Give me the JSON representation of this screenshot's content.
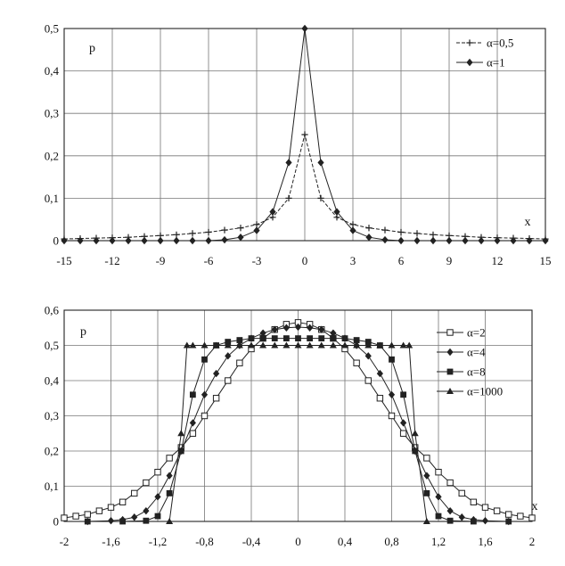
{
  "chart_data": [
    {
      "type": "line",
      "ylabel": "p",
      "xlabel": "x",
      "xlim": [
        -15,
        15
      ],
      "ylim": [
        0,
        0.5
      ],
      "x_ticks": [
        "-15",
        "-12",
        "-9",
        "-6",
        "-3",
        "0",
        "3",
        "6",
        "9",
        "12",
        "15"
      ],
      "y_ticks": [
        "0",
        "0,1",
        "0,2",
        "0,3",
        "0,4",
        "0,5"
      ],
      "grid": true,
      "legend_position": "top-right",
      "series": [
        {
          "name": "α=0,5",
          "marker": "plus",
          "color": "#222222",
          "points": [
            [
              -15,
              0.004
            ],
            [
              -14,
              0.005
            ],
            [
              -13,
              0.006
            ],
            [
              -12,
              0.007
            ],
            [
              -11,
              0.008
            ],
            [
              -10,
              0.01
            ],
            [
              -9,
              0.012
            ],
            [
              -8,
              0.014
            ],
            [
              -7,
              0.017
            ],
            [
              -6,
              0.02
            ],
            [
              -5,
              0.025
            ],
            [
              -4,
              0.03
            ],
            [
              -3,
              0.038
            ],
            [
              -2,
              0.055
            ],
            [
              -1,
              0.1
            ],
            [
              0,
              0.25
            ],
            [
              1,
              0.1
            ],
            [
              2,
              0.055
            ],
            [
              3,
              0.038
            ],
            [
              4,
              0.03
            ],
            [
              5,
              0.025
            ],
            [
              6,
              0.02
            ],
            [
              7,
              0.017
            ],
            [
              8,
              0.014
            ],
            [
              9,
              0.012
            ],
            [
              10,
              0.01
            ],
            [
              11,
              0.008
            ],
            [
              12,
              0.007
            ],
            [
              13,
              0.006
            ],
            [
              14,
              0.005
            ],
            [
              15,
              0.004
            ]
          ]
        },
        {
          "name": "α=1",
          "marker": "diamond",
          "color": "#222222",
          "points": [
            [
              -15,
              0.0
            ],
            [
              -14,
              0.0
            ],
            [
              -13,
              0.0
            ],
            [
              -12,
              0.0
            ],
            [
              -11,
              0.0
            ],
            [
              -10,
              0.0
            ],
            [
              -9,
              0.0
            ],
            [
              -8,
              0.0
            ],
            [
              -7,
              0.0
            ],
            [
              -6,
              0.0
            ],
            [
              -5,
              0.002
            ],
            [
              -4,
              0.008
            ],
            [
              -3,
              0.024
            ],
            [
              -2,
              0.068
            ],
            [
              -1,
              0.184
            ],
            [
              0,
              0.5
            ],
            [
              1,
              0.184
            ],
            [
              2,
              0.068
            ],
            [
              3,
              0.024
            ],
            [
              4,
              0.008
            ],
            [
              5,
              0.002
            ],
            [
              6,
              0.0
            ],
            [
              7,
              0.0
            ],
            [
              8,
              0.0
            ],
            [
              9,
              0.0
            ],
            [
              10,
              0.0
            ],
            [
              11,
              0.0
            ],
            [
              12,
              0.0
            ],
            [
              13,
              0.0
            ],
            [
              14,
              0.0
            ],
            [
              15,
              0.0
            ]
          ]
        }
      ]
    },
    {
      "type": "line",
      "ylabel": "p",
      "xlabel": "x",
      "xlim": [
        -2,
        2
      ],
      "ylim": [
        0,
        0.6
      ],
      "x_ticks": [
        "-2",
        "-1,6",
        "-1,2",
        "-0,8",
        "-0,4",
        "0",
        "0,4",
        "0,8",
        "1,2",
        "1,6",
        "2"
      ],
      "y_ticks": [
        "0",
        "0,1",
        "0,2",
        "0,3",
        "0,4",
        "0,5",
        "0,6"
      ],
      "grid": true,
      "legend_position": "top-right",
      "series": [
        {
          "name": "α=2",
          "marker": "open-square",
          "color": "#222222",
          "points": [
            [
              -2,
              0.01
            ],
            [
              -1.9,
              0.015
            ],
            [
              -1.8,
              0.02
            ],
            [
              -1.7,
              0.03
            ],
            [
              -1.6,
              0.04
            ],
            [
              -1.5,
              0.055
            ],
            [
              -1.4,
              0.08
            ],
            [
              -1.3,
              0.11
            ],
            [
              -1.2,
              0.14
            ],
            [
              -1.1,
              0.18
            ],
            [
              -1.0,
              0.21
            ],
            [
              -0.9,
              0.25
            ],
            [
              -0.8,
              0.3
            ],
            [
              -0.7,
              0.35
            ],
            [
              -0.6,
              0.4
            ],
            [
              -0.5,
              0.45
            ],
            [
              -0.4,
              0.49
            ],
            [
              -0.3,
              0.52
            ],
            [
              -0.2,
              0.545
            ],
            [
              -0.1,
              0.56
            ],
            [
              0,
              0.565
            ],
            [
              0.1,
              0.56
            ],
            [
              0.2,
              0.545
            ],
            [
              0.3,
              0.52
            ],
            [
              0.4,
              0.49
            ],
            [
              0.5,
              0.45
            ],
            [
              0.6,
              0.4
            ],
            [
              0.7,
              0.35
            ],
            [
              0.8,
              0.3
            ],
            [
              0.9,
              0.25
            ],
            [
              1.0,
              0.21
            ],
            [
              1.1,
              0.18
            ],
            [
              1.2,
              0.14
            ],
            [
              1.3,
              0.11
            ],
            [
              1.4,
              0.08
            ],
            [
              1.5,
              0.055
            ],
            [
              1.6,
              0.04
            ],
            [
              1.7,
              0.03
            ],
            [
              1.8,
              0.02
            ],
            [
              1.9,
              0.015
            ],
            [
              2,
              0.01
            ]
          ]
        },
        {
          "name": "α=4",
          "marker": "diamond",
          "color": "#222222",
          "points": [
            [
              -1.8,
              0.0
            ],
            [
              -1.6,
              0.002
            ],
            [
              -1.5,
              0.005
            ],
            [
              -1.4,
              0.012
            ],
            [
              -1.3,
              0.03
            ],
            [
              -1.2,
              0.07
            ],
            [
              -1.1,
              0.13
            ],
            [
              -1.0,
              0.2
            ],
            [
              -0.9,
              0.28
            ],
            [
              -0.8,
              0.36
            ],
            [
              -0.7,
              0.42
            ],
            [
              -0.6,
              0.47
            ],
            [
              -0.5,
              0.5
            ],
            [
              -0.4,
              0.52
            ],
            [
              -0.3,
              0.535
            ],
            [
              -0.2,
              0.545
            ],
            [
              -0.1,
              0.55
            ],
            [
              0,
              0.552
            ],
            [
              0.1,
              0.55
            ],
            [
              0.2,
              0.545
            ],
            [
              0.3,
              0.535
            ],
            [
              0.4,
              0.52
            ],
            [
              0.5,
              0.5
            ],
            [
              0.6,
              0.47
            ],
            [
              0.7,
              0.42
            ],
            [
              0.8,
              0.36
            ],
            [
              0.9,
              0.28
            ],
            [
              1.0,
              0.2
            ],
            [
              1.1,
              0.13
            ],
            [
              1.2,
              0.07
            ],
            [
              1.3,
              0.03
            ],
            [
              1.4,
              0.012
            ],
            [
              1.5,
              0.005
            ],
            [
              1.6,
              0.002
            ],
            [
              1.8,
              0.0
            ]
          ]
        },
        {
          "name": "α=8",
          "marker": "filled-square",
          "color": "#222222",
          "points": [
            [
              -1.8,
              0.0
            ],
            [
              -1.5,
              0.0
            ],
            [
              -1.3,
              0.002
            ],
            [
              -1.2,
              0.015
            ],
            [
              -1.1,
              0.08
            ],
            [
              -1.0,
              0.2
            ],
            [
              -0.9,
              0.36
            ],
            [
              -0.8,
              0.46
            ],
            [
              -0.7,
              0.5
            ],
            [
              -0.6,
              0.51
            ],
            [
              -0.5,
              0.515
            ],
            [
              -0.4,
              0.52
            ],
            [
              -0.3,
              0.52
            ],
            [
              -0.2,
              0.52
            ],
            [
              -0.1,
              0.52
            ],
            [
              0,
              0.52
            ],
            [
              0.1,
              0.52
            ],
            [
              0.2,
              0.52
            ],
            [
              0.3,
              0.52
            ],
            [
              0.4,
              0.52
            ],
            [
              0.5,
              0.515
            ],
            [
              0.6,
              0.51
            ],
            [
              0.7,
              0.5
            ],
            [
              0.8,
              0.46
            ],
            [
              0.9,
              0.36
            ],
            [
              1.0,
              0.2
            ],
            [
              1.1,
              0.08
            ],
            [
              1.2,
              0.015
            ],
            [
              1.3,
              0.002
            ],
            [
              1.5,
              0.0
            ],
            [
              1.8,
              0.0
            ]
          ]
        },
        {
          "name": "α=1000",
          "marker": "triangle",
          "color": "#222222",
          "points": [
            [
              -1.1,
              0.0
            ],
            [
              -1.0,
              0.25
            ],
            [
              -0.95,
              0.5
            ],
            [
              -0.9,
              0.5
            ],
            [
              -0.8,
              0.5
            ],
            [
              -0.7,
              0.5
            ],
            [
              -0.6,
              0.5
            ],
            [
              -0.5,
              0.5
            ],
            [
              -0.4,
              0.5
            ],
            [
              -0.3,
              0.5
            ],
            [
              -0.2,
              0.5
            ],
            [
              -0.1,
              0.5
            ],
            [
              0,
              0.5
            ],
            [
              0.1,
              0.5
            ],
            [
              0.2,
              0.5
            ],
            [
              0.3,
              0.5
            ],
            [
              0.4,
              0.5
            ],
            [
              0.5,
              0.5
            ],
            [
              0.6,
              0.5
            ],
            [
              0.7,
              0.5
            ],
            [
              0.8,
              0.5
            ],
            [
              0.9,
              0.5
            ],
            [
              0.95,
              0.5
            ],
            [
              1.0,
              0.25
            ],
            [
              1.1,
              0.0
            ]
          ]
        }
      ]
    }
  ]
}
